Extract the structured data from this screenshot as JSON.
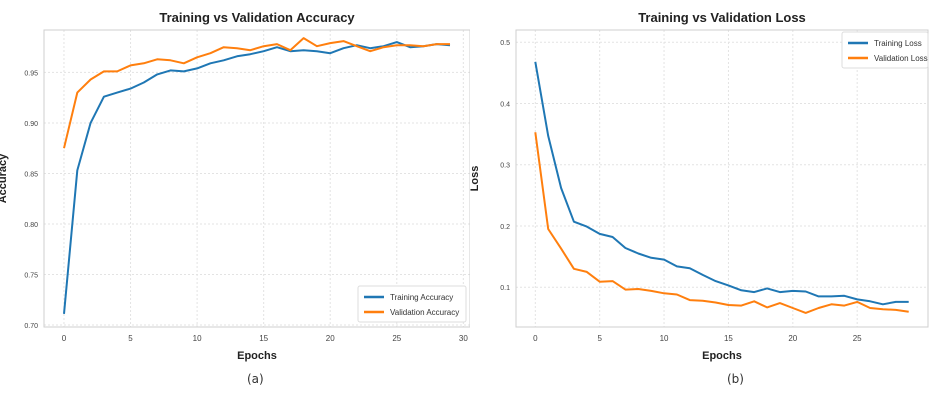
{
  "chart_data": [
    {
      "type": "line",
      "title": "Training vs Validation Accuracy",
      "xlabel": "Epochs",
      "ylabel": "Accuracy",
      "xlim": [
        -1.5,
        30.5
      ],
      "ylim": [
        0.698,
        0.992
      ],
      "xticks": [
        0,
        5,
        10,
        15,
        20,
        25,
        30
      ],
      "xtick_labels": [
        "0",
        "5",
        "10",
        "15",
        "20",
        "25",
        "30"
      ],
      "yticks": [
        0.7,
        0.75,
        0.8,
        0.85,
        0.9,
        0.95
      ],
      "ytick_labels": [
        "0.70",
        "0.75",
        "0.80",
        "0.85",
        "0.90",
        "0.95"
      ],
      "grid": true,
      "legend_position": "lower-right",
      "x": [
        0,
        1,
        2,
        3,
        4,
        5,
        6,
        7,
        8,
        9,
        10,
        11,
        12,
        13,
        14,
        15,
        16,
        17,
        18,
        19,
        20,
        21,
        22,
        23,
        24,
        25,
        26,
        27,
        28,
        29
      ],
      "series": [
        {
          "name": "Training Accuracy",
          "color": "#1f77b4",
          "values": [
            0.711,
            0.853,
            0.9,
            0.926,
            0.93,
            0.934,
            0.94,
            0.948,
            0.952,
            0.951,
            0.954,
            0.959,
            0.962,
            0.966,
            0.968,
            0.971,
            0.975,
            0.971,
            0.972,
            0.971,
            0.969,
            0.974,
            0.977,
            0.974,
            0.976,
            0.98,
            0.975,
            0.976,
            0.978,
            0.977
          ]
        },
        {
          "name": "Validation Accuracy",
          "color": "#ff7f0e",
          "values": [
            0.875,
            0.93,
            0.943,
            0.951,
            0.951,
            0.957,
            0.959,
            0.963,
            0.962,
            0.959,
            0.965,
            0.969,
            0.975,
            0.974,
            0.972,
            0.976,
            0.978,
            0.972,
            0.984,
            0.976,
            0.979,
            0.981,
            0.976,
            0.971,
            0.975,
            0.977,
            0.977,
            0.976,
            0.978,
            0.978
          ]
        }
      ]
    },
    {
      "type": "line",
      "title": "Training vs Validation Loss",
      "xlabel": "Epochs",
      "ylabel": "Loss",
      "xlim": [
        -1.5,
        30.5
      ],
      "ylim": [
        0.035,
        0.52
      ],
      "xticks": [
        0,
        5,
        10,
        15,
        20,
        25
      ],
      "xtick_labels": [
        "0",
        "5",
        "10",
        "15",
        "20",
        "25"
      ],
      "yticks": [
        0.1,
        0.2,
        0.3,
        0.4,
        0.5
      ],
      "ytick_labels": [
        "0.1",
        "0.2",
        "0.3",
        "0.4",
        "0.5"
      ],
      "grid": true,
      "legend_position": "upper-right",
      "x": [
        0,
        1,
        2,
        3,
        4,
        5,
        6,
        7,
        8,
        9,
        10,
        11,
        12,
        13,
        14,
        15,
        16,
        17,
        18,
        19,
        20,
        21,
        22,
        23,
        24,
        25,
        26,
        27,
        28,
        29
      ],
      "series": [
        {
          "name": "Training Loss",
          "color": "#1f77b4",
          "values": [
            0.468,
            0.347,
            0.262,
            0.207,
            0.199,
            0.187,
            0.182,
            0.164,
            0.155,
            0.148,
            0.145,
            0.134,
            0.131,
            0.12,
            0.11,
            0.103,
            0.095,
            0.092,
            0.098,
            0.092,
            0.094,
            0.093,
            0.085,
            0.085,
            0.086,
            0.08,
            0.077,
            0.072,
            0.076,
            0.076
          ]
        },
        {
          "name": "Validation Loss",
          "color": "#ff7f0e",
          "values": [
            0.353,
            0.195,
            0.163,
            0.13,
            0.125,
            0.109,
            0.11,
            0.096,
            0.097,
            0.094,
            0.09,
            0.088,
            0.079,
            0.078,
            0.075,
            0.071,
            0.07,
            0.077,
            0.067,
            0.074,
            0.066,
            0.058,
            0.066,
            0.072,
            0.07,
            0.076,
            0.066,
            0.064,
            0.063,
            0.06
          ]
        }
      ]
    }
  ],
  "captions": {
    "left": "(a)",
    "right": "(b)"
  }
}
